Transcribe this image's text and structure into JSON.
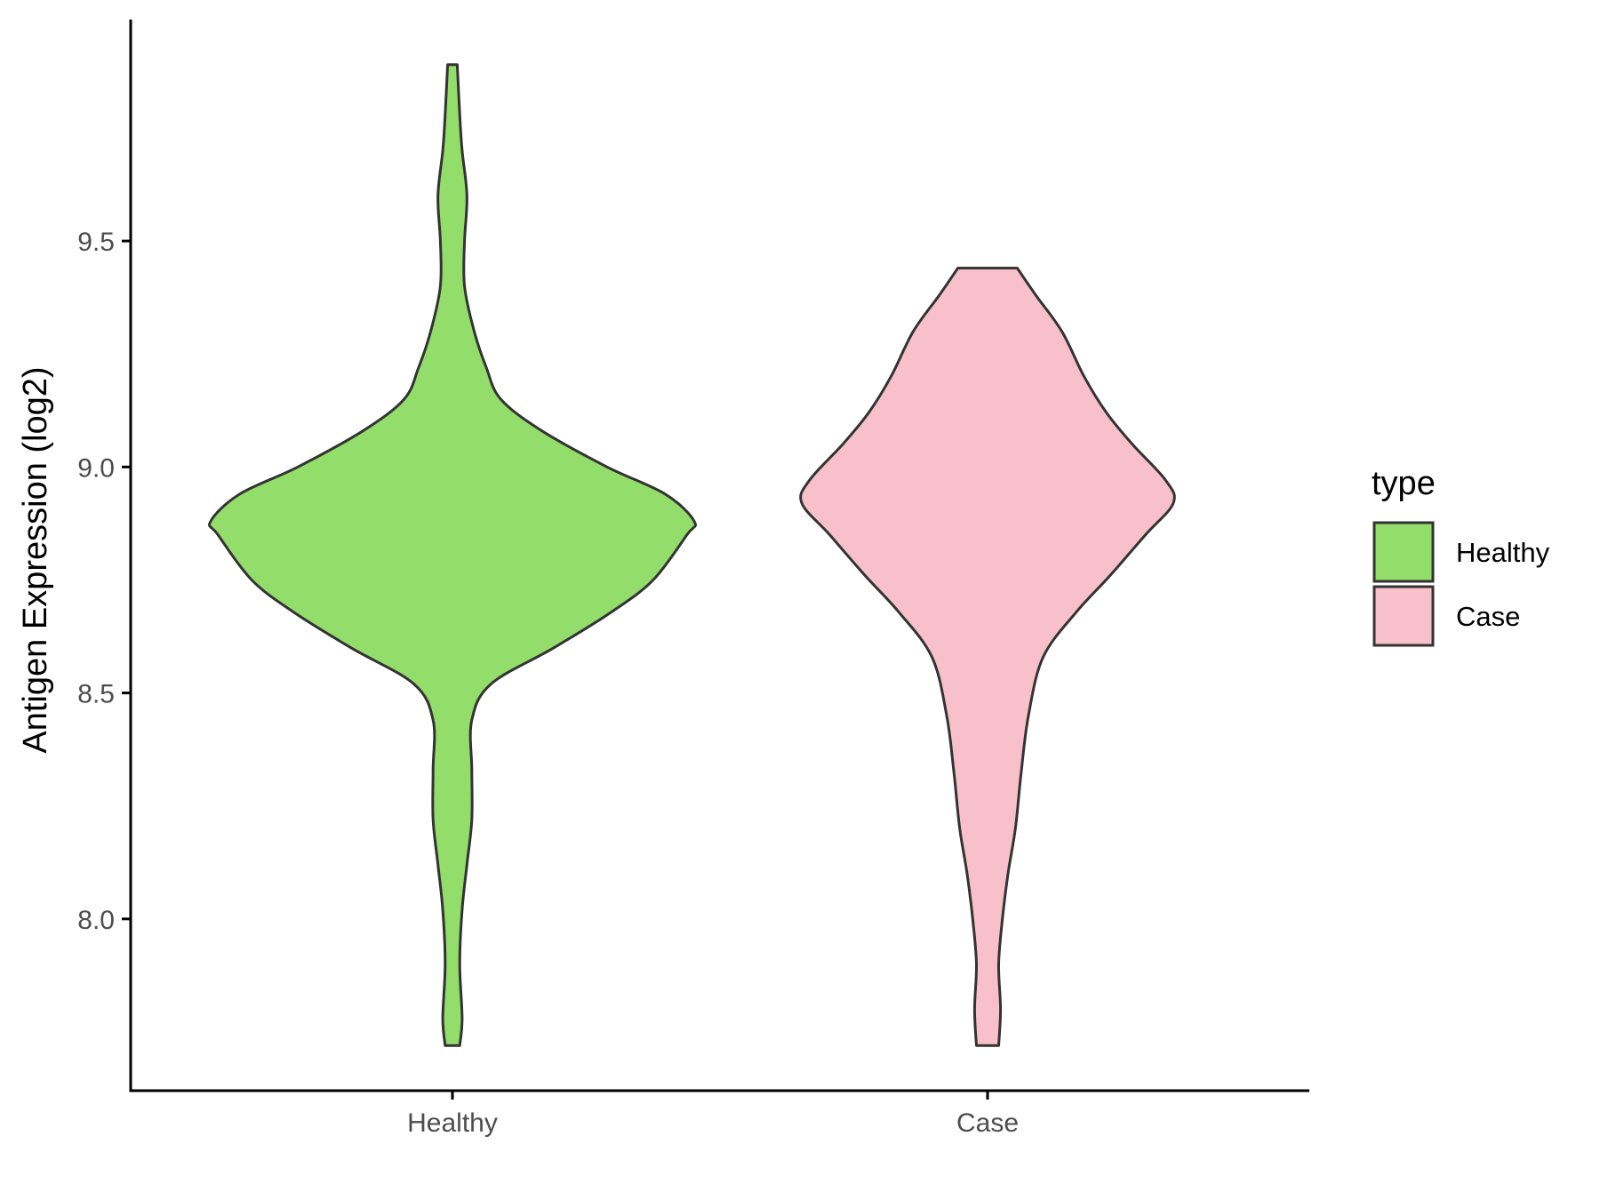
{
  "chart_data": {
    "type": "violin",
    "title": "",
    "xlabel": "",
    "ylabel": "Antigen Expression (log2)",
    "categories": [
      "Healthy",
      "Case"
    ],
    "y_ticks": [
      8.0,
      8.5,
      9.0,
      9.5
    ],
    "y_tick_labels": [
      "8.0",
      "8.5",
      "9.0",
      "9.5"
    ],
    "ylim": [
      7.62,
      9.99
    ],
    "grid": false,
    "legend": {
      "title": "type",
      "placement": "right",
      "entries": [
        {
          "label": "Healthy",
          "color": "#93DD6A"
        },
        {
          "label": "Case",
          "color": "#F7C0CB"
        }
      ]
    },
    "series": [
      {
        "name": "Healthy",
        "color": "#93DD6A",
        "y_range": [
          7.72,
          9.89
        ],
        "density_profile": [
          [
            7.72,
            0.03
          ],
          [
            7.78,
            0.04
          ],
          [
            7.9,
            0.03
          ],
          [
            8.02,
            0.04
          ],
          [
            8.12,
            0.06
          ],
          [
            8.22,
            0.08
          ],
          [
            8.33,
            0.08
          ],
          [
            8.44,
            0.08
          ],
          [
            8.52,
            0.16
          ],
          [
            8.6,
            0.42
          ],
          [
            8.68,
            0.66
          ],
          [
            8.75,
            0.83
          ],
          [
            8.85,
            0.97
          ],
          [
            8.88,
            1.0
          ],
          [
            8.94,
            0.88
          ],
          [
            9.0,
            0.64
          ],
          [
            9.08,
            0.37
          ],
          [
            9.15,
            0.2
          ],
          [
            9.22,
            0.14
          ],
          [
            9.3,
            0.09
          ],
          [
            9.4,
            0.05
          ],
          [
            9.5,
            0.05
          ],
          [
            9.6,
            0.06
          ],
          [
            9.7,
            0.04
          ],
          [
            9.78,
            0.03
          ],
          [
            9.89,
            0.02
          ]
        ]
      },
      {
        "name": "Case",
        "color": "#F7C0CB",
        "y_range": [
          7.72,
          9.44
        ],
        "density_profile": [
          [
            7.72,
            0.06
          ],
          [
            7.8,
            0.07
          ],
          [
            7.9,
            0.06
          ],
          [
            8.0,
            0.08
          ],
          [
            8.1,
            0.11
          ],
          [
            8.2,
            0.15
          ],
          [
            8.32,
            0.18
          ],
          [
            8.45,
            0.22
          ],
          [
            8.58,
            0.3
          ],
          [
            8.68,
            0.48
          ],
          [
            8.76,
            0.66
          ],
          [
            8.85,
            0.85
          ],
          [
            8.92,
            1.0
          ],
          [
            8.97,
            0.96
          ],
          [
            9.05,
            0.78
          ],
          [
            9.12,
            0.64
          ],
          [
            9.2,
            0.52
          ],
          [
            9.3,
            0.4
          ],
          [
            9.38,
            0.26
          ],
          [
            9.44,
            0.16
          ]
        ]
      }
    ]
  }
}
